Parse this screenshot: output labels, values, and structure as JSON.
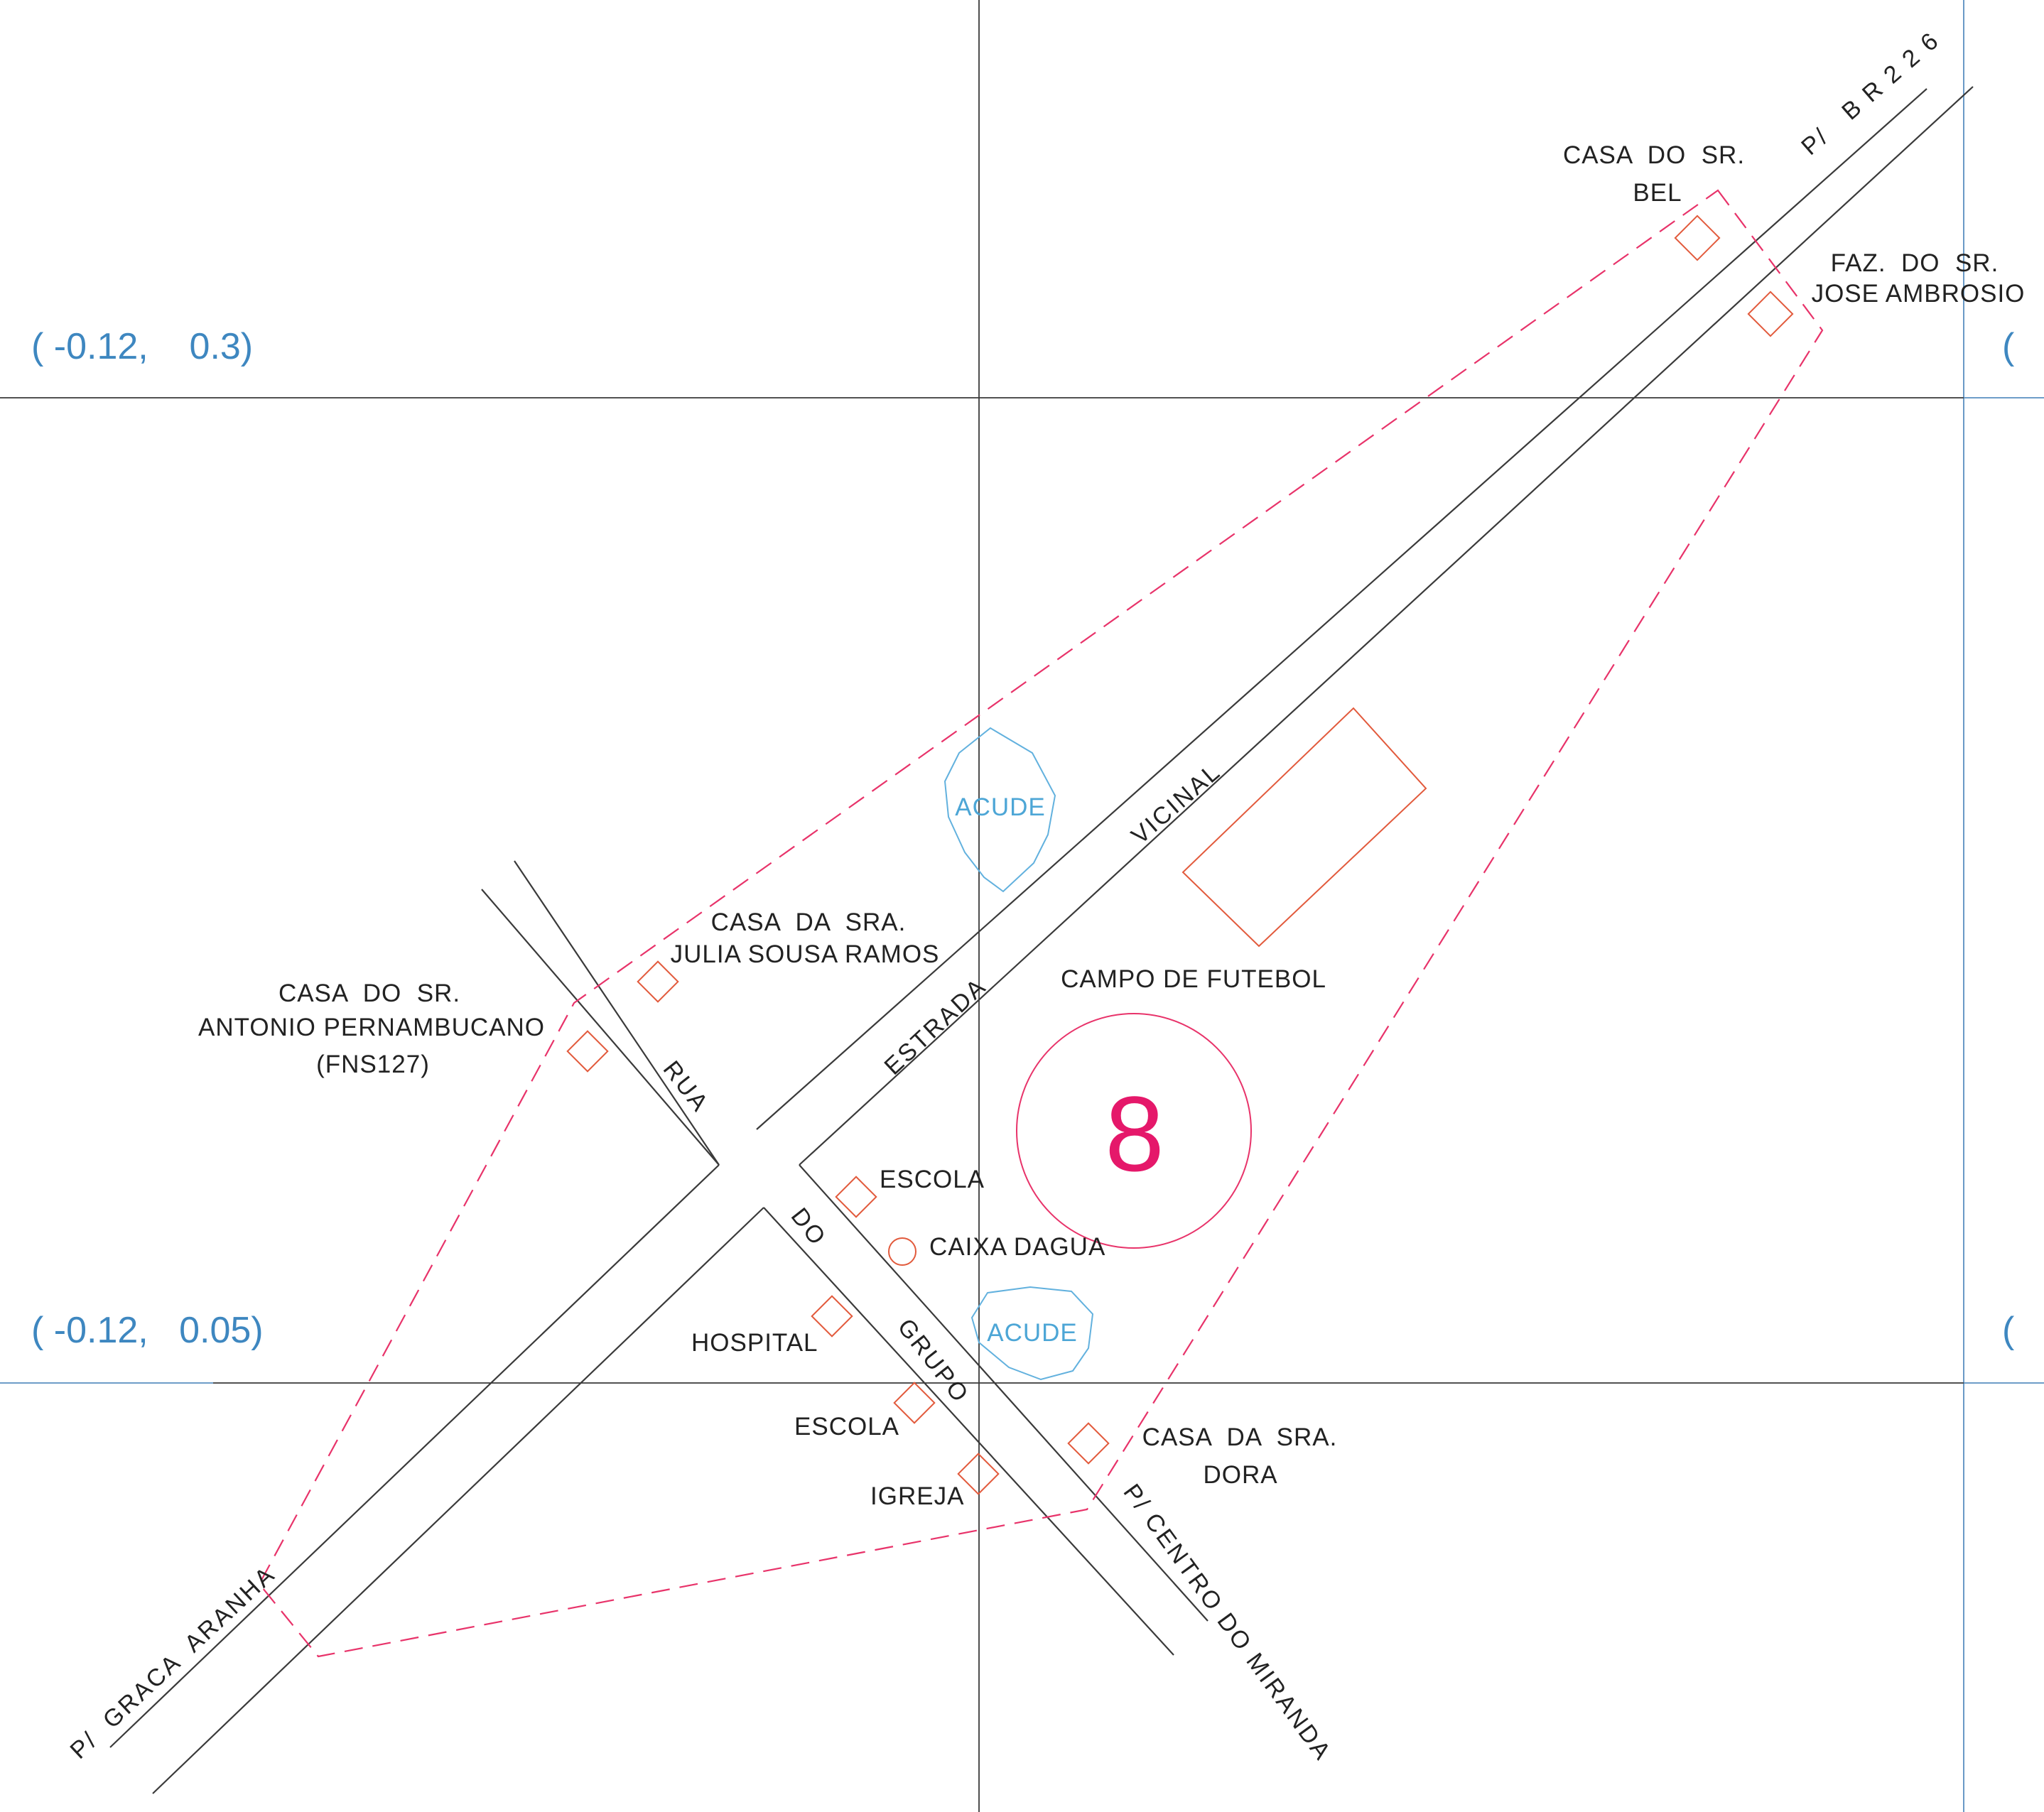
{
  "colors": {
    "road": "#3a3a3a",
    "boundary": "#e8336a",
    "building": "#e25a3c",
    "water": "#62b1de",
    "coordinate": "#3e87c0",
    "area_number": "#e5186a"
  },
  "coordinates": {
    "upper": "( -0.12,    0.3)",
    "lower": "( -0.12,   0.05)",
    "right_cut": "("
  },
  "area_number": "8",
  "roads": {
    "to_br226": "P/   B R 2 2 6",
    "vicinal": "VICINAL",
    "estrada": "ESTRADA",
    "rua": "RUA",
    "do": "DO",
    "grupo": "GRUPO",
    "to_graca_aranha": "P/  GRACA  ARANHA",
    "to_centro_do_miranda": "P/ CENTRO DO MIRANDA"
  },
  "places": {
    "casa_bel_line1": "CASA  DO  SR.",
    "casa_bel_line2": "BEL",
    "faz_jose_line1": "FAZ.  DO  SR.",
    "faz_jose_line2": "JOSE AMBROSIO",
    "casa_julia_line1": "CASA  DA  SRA.",
    "casa_julia_line2": "JULIA SOUSA RAMOS",
    "casa_antonio_line1": "CASA  DO  SR.",
    "casa_antonio_line2": "ANTONIO PERNAMBUCANO",
    "casa_antonio_line3": "(FNS127)",
    "campo": "CAMPO DE FUTEBOL",
    "escola_1": "ESCOLA",
    "caixa_dagua": "CAIXA DAGUA",
    "hospital": "HOSPITAL",
    "escola_2": "ESCOLA",
    "igreja": "IGREJA",
    "casa_dora_line1": "CASA  DA  SRA.",
    "casa_dora_line2": "DORA"
  },
  "water": {
    "acude_1": "ACUDE",
    "acude_2": "ACUDE"
  }
}
